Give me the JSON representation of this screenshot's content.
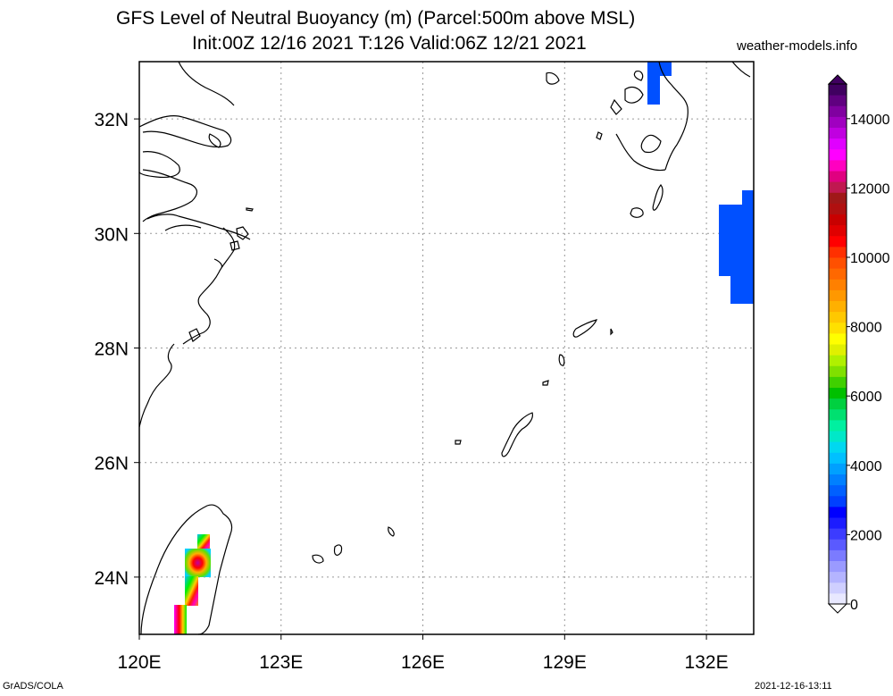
{
  "title": {
    "line1": "GFS Level of Neutral Buoyancy (m) (Parcel:500m above MSL)",
    "line2": "Init:00Z 12/16 2021 T:126 Valid:06Z 12/21 2021"
  },
  "site_label": "weather-models.info",
  "footer": {
    "left": "GrADS/COLA",
    "right": "2021-12-16-13:11"
  },
  "map": {
    "x_ticks": [
      {
        "label": "120E",
        "value": 120
      },
      {
        "label": "123E",
        "value": 123
      },
      {
        "label": "126E",
        "value": 126
      },
      {
        "label": "129E",
        "value": 129
      },
      {
        "label": "132E",
        "value": 132
      }
    ],
    "y_ticks": [
      {
        "label": "32N",
        "value": 32
      },
      {
        "label": "30N",
        "value": 30
      },
      {
        "label": "28N",
        "value": 28
      },
      {
        "label": "26N",
        "value": 26
      },
      {
        "label": "24N",
        "value": 24
      }
    ],
    "lon_range": [
      120,
      133
    ],
    "lat_range": [
      23,
      33
    ],
    "gridlines": "dotted"
  },
  "colorbar": {
    "labels": [
      "0",
      "2000",
      "4000",
      "6000",
      "8000",
      "10000",
      "12000",
      "14000"
    ],
    "range": [
      0,
      15000
    ],
    "colors": [
      "#e8e8ff",
      "#cfcfff",
      "#b4b4ff",
      "#9a9aff",
      "#7b7bff",
      "#5a5aff",
      "#3c3cff",
      "#1c1cff",
      "#0000ff",
      "#0040ff",
      "#0060ff",
      "#0080ff",
      "#00a0ff",
      "#00c0ff",
      "#00d8f0",
      "#00e8c8",
      "#00f0a0",
      "#00e070",
      "#00d040",
      "#00c000",
      "#40d000",
      "#80e000",
      "#b0f000",
      "#e0f000",
      "#ffff00",
      "#ffe000",
      "#ffc800",
      "#ffb000",
      "#ff9800",
      "#ff8000",
      "#ff6800",
      "#ff5000",
      "#ff3000",
      "#ff0000",
      "#e00000",
      "#c80000",
      "#b01010",
      "#a01818",
      "#c01850",
      "#e00080",
      "#ff00c0",
      "#ff00ff",
      "#e000ff",
      "#c000e0",
      "#a000c0",
      "#8000a0",
      "#600080",
      "#400060"
    ]
  }
}
